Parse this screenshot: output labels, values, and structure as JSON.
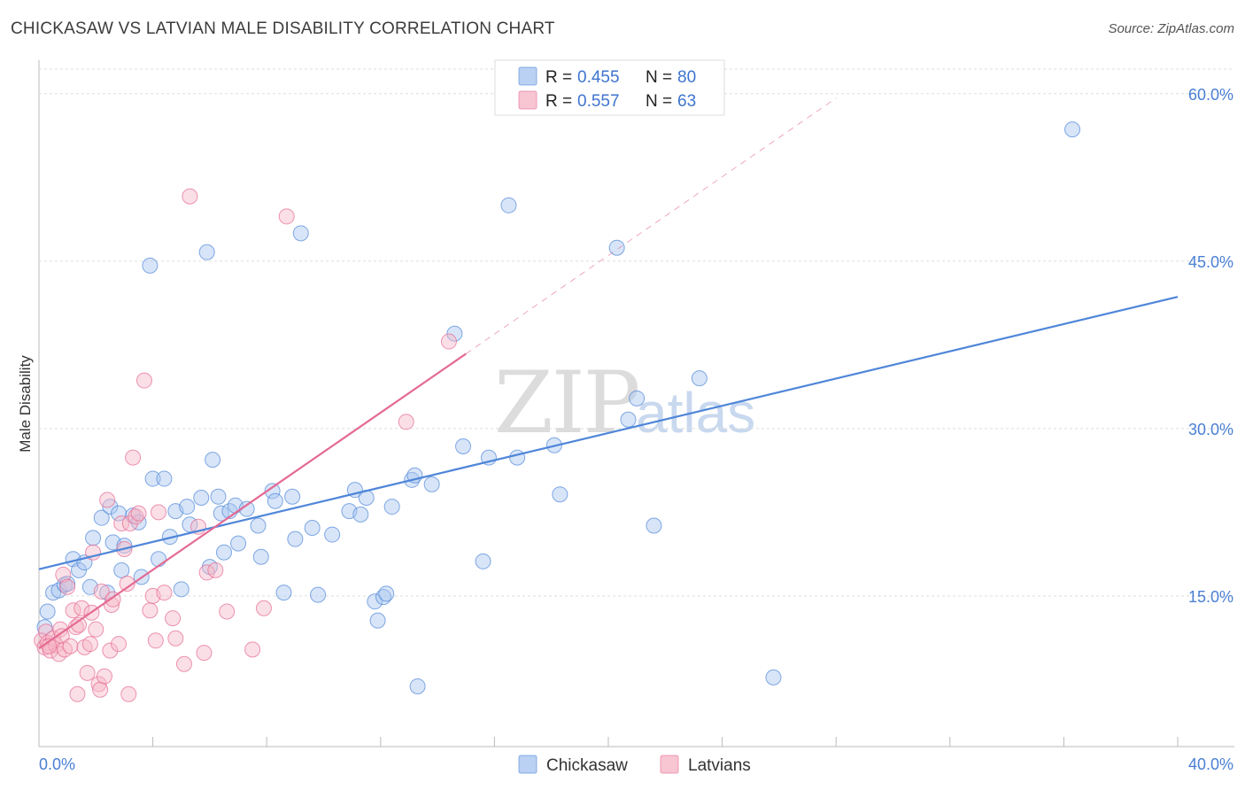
{
  "title": "CHICKASAW VS LATVIAN MALE DISABILITY CORRELATION CHART",
  "source": "Source: ZipAtlas.com",
  "watermark": {
    "part1": "ZIP",
    "part2": "atlas"
  },
  "legend": {
    "rows": [
      {
        "r_label": "R =",
        "r_value": "0.455",
        "n_label": "N =",
        "n_value": "80",
        "color": "#a9c5f0"
      },
      {
        "r_label": "R =",
        "r_value": "0.557",
        "n_label": "N =",
        "n_value": "63",
        "color": "#f6b7c8"
      }
    ]
  },
  "bottom_legend": [
    {
      "label": "Chickasaw",
      "color": "#a9c5f0"
    },
    {
      "label": "Latvians",
      "color": "#f6b7c8"
    }
  ],
  "chart_data": {
    "type": "scatter",
    "title": "CHICKASAW VS LATVIAN MALE DISABILITY CORRELATION CHART",
    "xlabel": "",
    "ylabel": "Male Disability",
    "xlim": [
      0,
      40
    ],
    "ylim": [
      1.5,
      63
    ],
    "x_tick_labels": [
      "0.0%",
      "40.0%"
    ],
    "y_ticks": [
      15,
      30,
      45,
      60
    ],
    "y_tick_labels": [
      "15.0%",
      "30.0%",
      "45.0%",
      "60.0%"
    ],
    "series": [
      {
        "name": "Chickasaw",
        "color": "#4f86d9",
        "fill": "#a9c5f0",
        "trend": {
          "x0": 0,
          "y0": 17.4,
          "x1": 40,
          "y1": 41.8
        },
        "points": [
          [
            0.3,
            13.6
          ],
          [
            0.5,
            15.3
          ],
          [
            0.7,
            15.5
          ],
          [
            0.9,
            16
          ],
          [
            1.2,
            18.3
          ],
          [
            1.4,
            17.3
          ],
          [
            1.6,
            18
          ],
          [
            1.8,
            15.8
          ],
          [
            1.9,
            20.2
          ],
          [
            2.2,
            22
          ],
          [
            2.4,
            15.3
          ],
          [
            2.5,
            23
          ],
          [
            2.6,
            19.8
          ],
          [
            2.9,
            17.3
          ],
          [
            3.0,
            19.5
          ],
          [
            3.3,
            22.2
          ],
          [
            3.5,
            21.6
          ],
          [
            3.6,
            16.7
          ],
          [
            3.9,
            44.6
          ],
          [
            4.0,
            25.5
          ],
          [
            4.2,
            18.3
          ],
          [
            4.4,
            25.5
          ],
          [
            4.6,
            20.3
          ],
          [
            4.8,
            22.6
          ],
          [
            5.0,
            15.6
          ],
          [
            5.2,
            23
          ],
          [
            5.3,
            21.4
          ],
          [
            5.7,
            23.8
          ],
          [
            5.9,
            45.8
          ],
          [
            6.0,
            17.6
          ],
          [
            6.1,
            27.2
          ],
          [
            6.3,
            23.9
          ],
          [
            6.4,
            22.4
          ],
          [
            6.5,
            18.9
          ],
          [
            6.7,
            22.6
          ],
          [
            6.9,
            23.1
          ],
          [
            7.0,
            19.7
          ],
          [
            7.3,
            22.8
          ],
          [
            7.7,
            21.3
          ],
          [
            7.8,
            18.5
          ],
          [
            8.2,
            24.4
          ],
          [
            8.3,
            23.5
          ],
          [
            8.6,
            15.3
          ],
          [
            8.9,
            23.9
          ],
          [
            9.0,
            20.1
          ],
          [
            9.2,
            47.5
          ],
          [
            9.6,
            21.1
          ],
          [
            9.8,
            15.1
          ],
          [
            10.3,
            20.5
          ],
          [
            10.9,
            22.6
          ],
          [
            11.1,
            24.5
          ],
          [
            11.3,
            22.3
          ],
          [
            11.5,
            23.8
          ],
          [
            11.8,
            14.5
          ],
          [
            11.9,
            12.8
          ],
          [
            12.1,
            14.9
          ],
          [
            12.2,
            15.2
          ],
          [
            12.4,
            23
          ],
          [
            13.1,
            25.4
          ],
          [
            13.2,
            25.8
          ],
          [
            13.3,
            6.9
          ],
          [
            13.8,
            25
          ],
          [
            14.6,
            38.5
          ],
          [
            14.9,
            28.4
          ],
          [
            15.6,
            18.1
          ],
          [
            15.8,
            27.4
          ],
          [
            16.5,
            50
          ],
          [
            16.8,
            27.4
          ],
          [
            18.1,
            28.5
          ],
          [
            18.3,
            24.1
          ],
          [
            20.3,
            46.2
          ],
          [
            20.7,
            30.8
          ],
          [
            21.0,
            32.7
          ],
          [
            21.6,
            21.3
          ],
          [
            23.2,
            34.5
          ],
          [
            25.8,
            7.7
          ],
          [
            36.3,
            56.8
          ],
          [
            0.2,
            12.2
          ],
          [
            1.0,
            16.1
          ],
          [
            2.8,
            22.4
          ]
        ]
      },
      {
        "name": "Latvians",
        "color": "#e46a93",
        "fill": "#f6b7c8",
        "trend": {
          "x0": 0,
          "y0": 10.3,
          "x1": 15,
          "y1": 36.7
        },
        "trend_ext": {
          "x0": 15,
          "y0": 36.7,
          "x1": 28,
          "y1": 59.6
        },
        "points": [
          [
            0.1,
            11
          ],
          [
            0.2,
            10.4
          ],
          [
            0.25,
            11.8
          ],
          [
            0.3,
            10.8
          ],
          [
            0.4,
            10.1
          ],
          [
            0.5,
            11.2
          ],
          [
            0.6,
            10.6
          ],
          [
            0.7,
            9.8
          ],
          [
            0.75,
            12
          ],
          [
            0.8,
            11.4
          ],
          [
            0.85,
            16.9
          ],
          [
            0.9,
            10.2
          ],
          [
            1.0,
            15.8
          ],
          [
            1.1,
            10.5
          ],
          [
            1.2,
            13.7
          ],
          [
            1.3,
            12.2
          ],
          [
            1.35,
            6.2
          ],
          [
            1.4,
            12.4
          ],
          [
            1.5,
            13.9
          ],
          [
            1.6,
            10.4
          ],
          [
            1.7,
            8.1
          ],
          [
            1.8,
            10.7
          ],
          [
            1.85,
            13.5
          ],
          [
            1.9,
            18.9
          ],
          [
            2.0,
            12
          ],
          [
            2.1,
            7.1
          ],
          [
            2.15,
            6.6
          ],
          [
            2.2,
            15.4
          ],
          [
            2.3,
            7.8
          ],
          [
            2.4,
            23.6
          ],
          [
            2.5,
            10.1
          ],
          [
            2.55,
            14.2
          ],
          [
            2.6,
            14.7
          ],
          [
            2.8,
            10.7
          ],
          [
            2.9,
            21.5
          ],
          [
            3.0,
            19.2
          ],
          [
            3.1,
            16.1
          ],
          [
            3.15,
            6.2
          ],
          [
            3.2,
            21.5
          ],
          [
            3.3,
            27.4
          ],
          [
            3.4,
            22.1
          ],
          [
            3.5,
            22.4
          ],
          [
            3.7,
            34.3
          ],
          [
            3.9,
            13.7
          ],
          [
            4.0,
            15
          ],
          [
            4.1,
            11
          ],
          [
            4.2,
            22.5
          ],
          [
            4.4,
            15.3
          ],
          [
            4.7,
            13
          ],
          [
            4.8,
            11.2
          ],
          [
            5.1,
            8.9
          ],
          [
            5.3,
            50.8
          ],
          [
            5.6,
            21.2
          ],
          [
            5.8,
            9.9
          ],
          [
            5.9,
            17.1
          ],
          [
            6.2,
            17.3
          ],
          [
            6.6,
            13.6
          ],
          [
            7.5,
            10.2
          ],
          [
            7.9,
            13.9
          ],
          [
            8.7,
            49
          ],
          [
            12.9,
            30.6
          ],
          [
            14.4,
            37.8
          ],
          [
            0.35,
            10.5
          ]
        ]
      }
    ]
  }
}
